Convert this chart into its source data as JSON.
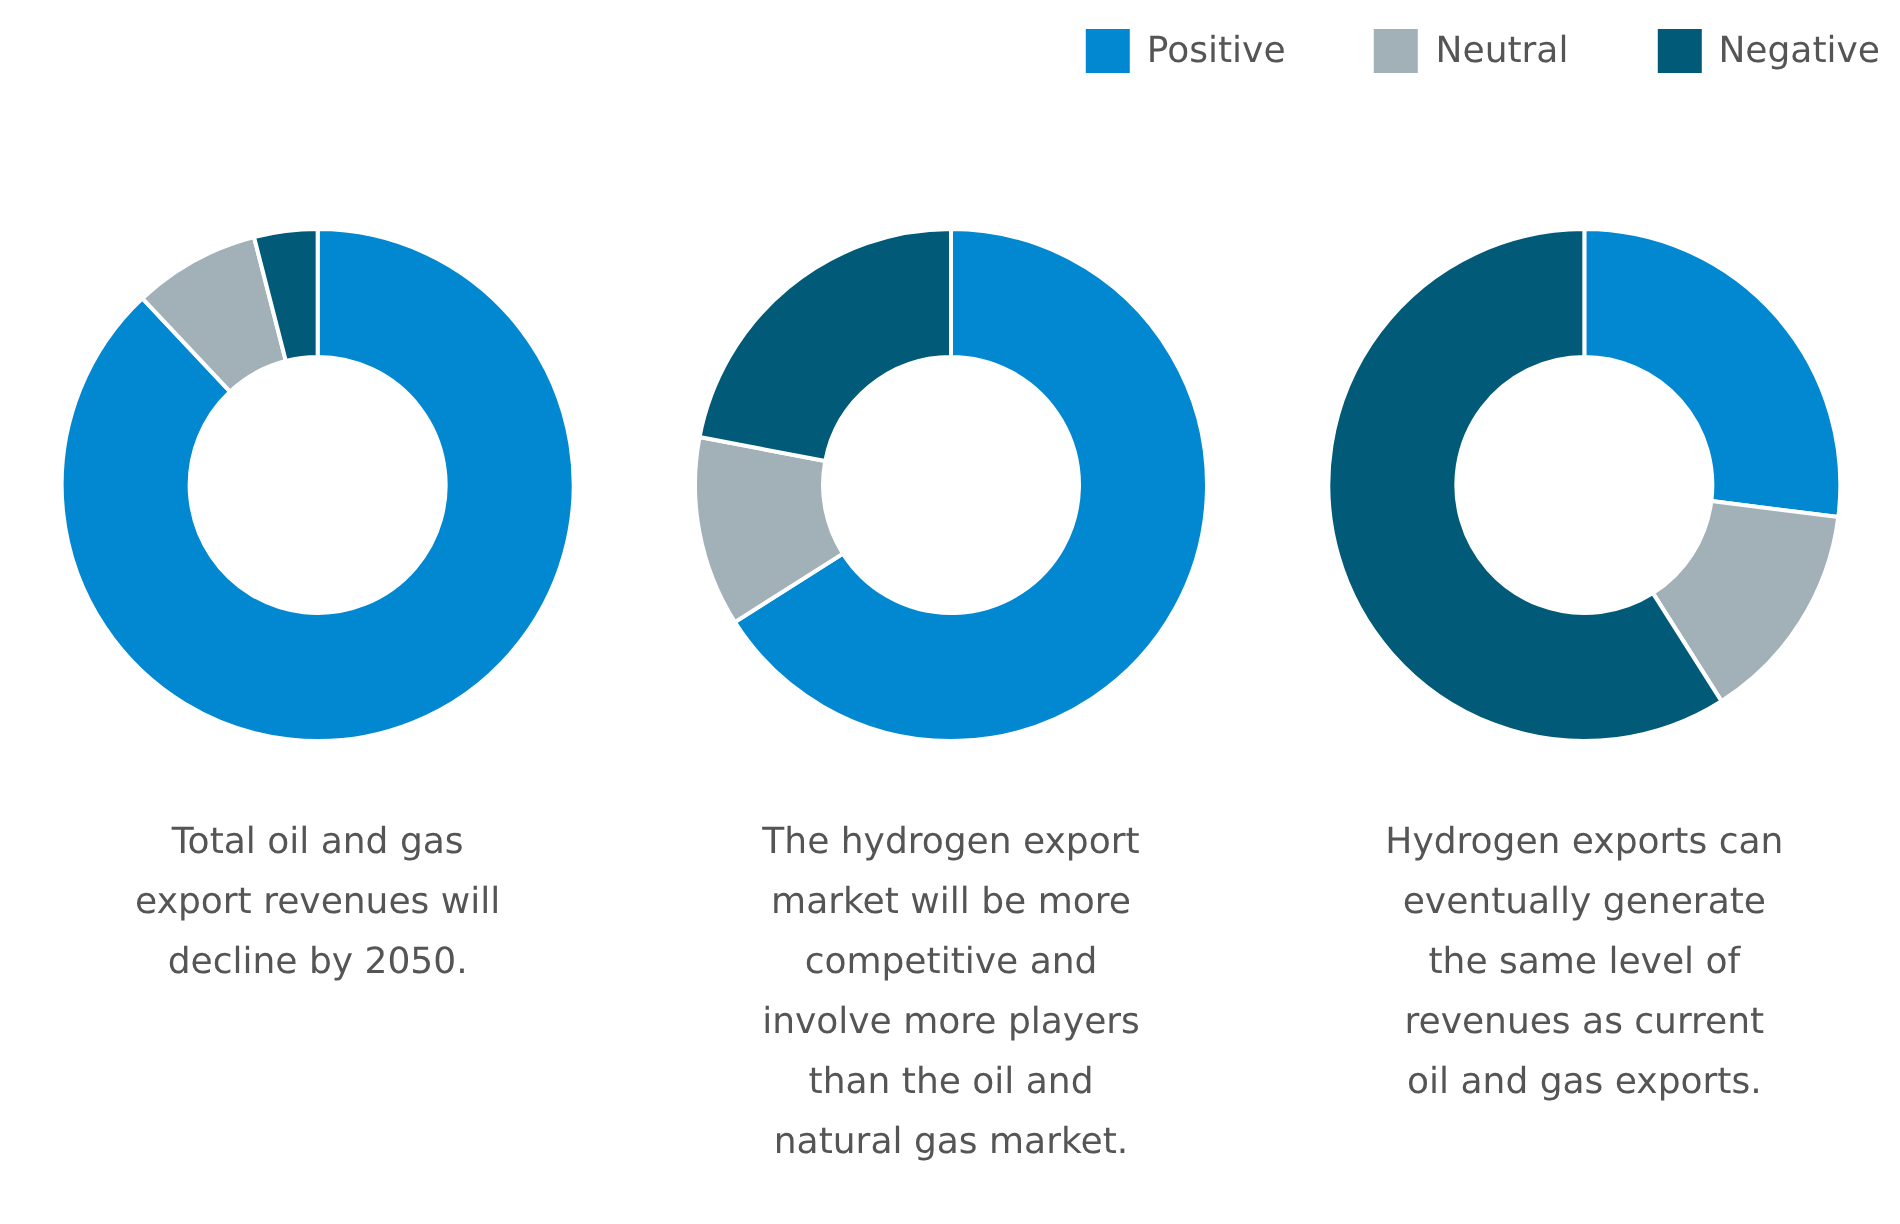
{
  "chart_data": [
    {
      "type": "donut",
      "title": "Total oil and gas export revenues will decline by 2050.",
      "categories": [
        "Positive",
        "Neutral",
        "Negative"
      ],
      "values": [
        88,
        8,
        4
      ],
      "colors": [
        "#0288d1",
        "#a2b0b8",
        "#005a78"
      ],
      "legend": "top right"
    },
    {
      "type": "donut",
      "title": "The hydrogen export market will be more competitive and involve more players than the oil and natural gas market.",
      "categories": [
        null,
        null,
        null
      ],
      "values": [
        66,
        12,
        22
      ],
      "colors": [
        "#0288d1",
        "#a2b0b8",
        "#005a78"
      ]
    },
    {
      "type": "donut",
      "title": "Hydrogen exports can eventually generate the same level of revenues as current oil and gas exports.",
      "categories": [
        null,
        null,
        null
      ],
      "values": [
        27,
        14,
        59
      ],
      "colors": [
        "#0288d1",
        "#a2b0b8",
        "#005a78"
      ]
    }
  ]
}
